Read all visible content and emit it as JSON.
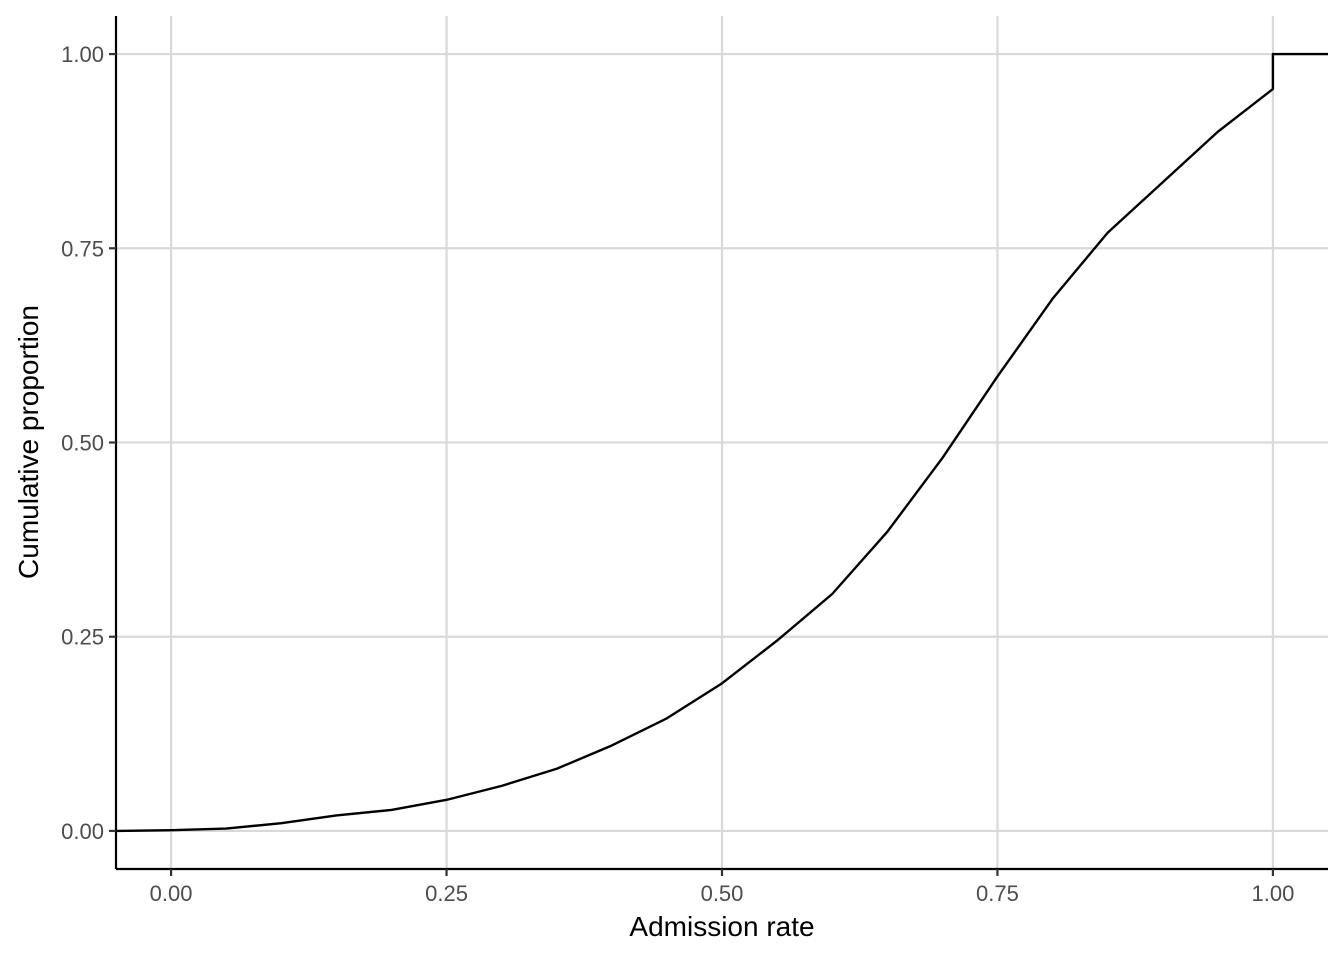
{
  "chart_data": {
    "type": "line",
    "title": "",
    "xlabel": "Admission rate",
    "ylabel": "Cumulative proportion",
    "xlim": [
      -0.05,
      1.05
    ],
    "ylim": [
      -0.049,
      1.049
    ],
    "x_ticks": [
      0,
      0.25,
      0.5,
      0.75,
      1
    ],
    "x_tick_labels": [
      "0.00",
      "0.25",
      "0.50",
      "0.75",
      "1.00"
    ],
    "y_ticks": [
      0,
      0.25,
      0.5,
      0.75,
      1
    ],
    "y_tick_labels": [
      "0.00",
      "0.25",
      "0.50",
      "0.75",
      "1.00"
    ],
    "grid": true,
    "step": true,
    "series": [
      {
        "x": [
          -0.05,
          0.0,
          0.05,
          0.1,
          0.15,
          0.2,
          0.25,
          0.3,
          0.35,
          0.4,
          0.45,
          0.5,
          0.55,
          0.6,
          0.65,
          0.7,
          0.75,
          0.8,
          0.85,
          0.9,
          0.95,
          1.0,
          1.0,
          1.05
        ],
        "y": [
          0.0,
          0.001,
          0.003,
          0.01,
          0.02,
          0.027,
          0.04,
          0.058,
          0.08,
          0.11,
          0.145,
          0.19,
          0.245,
          0.305,
          0.385,
          0.48,
          0.585,
          0.685,
          0.77,
          0.835,
          0.9,
          0.955,
          1.0,
          1.0
        ]
      }
    ]
  }
}
